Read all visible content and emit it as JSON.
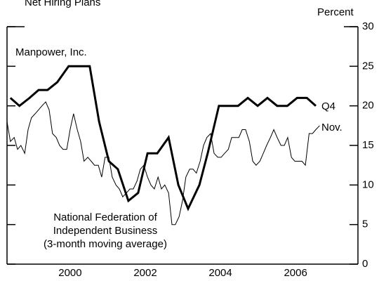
{
  "chart_data": {
    "type": "line",
    "title": "Net Hiring Plans",
    "y_axis_label": "Percent",
    "annotations": [
      "Manpower, Inc.",
      "Q4",
      "Nov.",
      "National Federation of",
      "Independent Business",
      "(3-month moving average)"
    ],
    "xlim": [
      1998.82,
      2008.16
    ],
    "xticks": [
      {
        "value": 2000.5,
        "label": "2000"
      },
      {
        "value": 2002.5,
        "label": "2002"
      },
      {
        "value": 2004.5,
        "label": "2004"
      },
      {
        "value": 2006.5,
        "label": "2006"
      }
    ],
    "ylim": [
      0,
      30
    ],
    "yticks": [
      0,
      5,
      10,
      15,
      20,
      25,
      30
    ],
    "series": [
      {
        "name": "Manpower, Inc.",
        "color": "#000000",
        "width": 3,
        "x": [
          1998.91,
          1999.15,
          1999.42,
          1999.66,
          1999.9,
          2000.16,
          2000.46,
          2000.72,
          2001.02,
          2001.27,
          2001.53,
          2001.77,
          2002.05,
          2002.31,
          2002.56,
          2002.82,
          2003.12,
          2003.38,
          2003.64,
          2003.94,
          2004.16,
          2004.46,
          2004.7,
          2004.97,
          2005.23,
          2005.49,
          2005.75,
          2006.01,
          2006.28,
          2006.54,
          2006.8,
          2007.04
        ],
        "values": [
          21,
          20,
          21,
          22,
          22,
          23,
          25,
          25,
          25,
          18,
          13,
          12,
          8,
          9,
          14,
          14,
          16,
          10,
          7,
          10,
          14,
          20,
          20,
          20,
          21,
          20,
          21,
          20,
          20,
          21,
          21,
          20
        ]
      },
      {
        "name": "National Federation of Independent Business",
        "color": "#000000",
        "width": 1,
        "x": [
          1998.82,
          1998.91,
          1999.01,
          1999.1,
          1999.19,
          1999.29,
          1999.38,
          1999.47,
          1999.57,
          1999.66,
          1999.75,
          1999.85,
          1999.94,
          2000.03,
          2000.13,
          2000.22,
          2000.31,
          2000.41,
          2000.5,
          2000.59,
          2000.69,
          2000.78,
          2000.87,
          2000.97,
          2001.06,
          2001.15,
          2001.25,
          2001.34,
          2001.43,
          2001.53,
          2001.62,
          2001.72,
          2001.81,
          2001.9,
          2002.0,
          2002.09,
          2002.18,
          2002.28,
          2002.37,
          2002.46,
          2002.56,
          2002.65,
          2002.74,
          2002.84,
          2002.93,
          2003.02,
          2003.12,
          2003.21,
          2003.3,
          2003.4,
          2003.49,
          2003.58,
          2003.68,
          2003.77,
          2003.86,
          2003.96,
          2004.05,
          2004.14,
          2004.24,
          2004.33,
          2004.43,
          2004.52,
          2004.61,
          2004.71,
          2004.8,
          2004.89,
          2004.99,
          2005.08,
          2005.17,
          2005.27,
          2005.36,
          2005.45,
          2005.55,
          2005.64,
          2005.73,
          2005.83,
          2005.92,
          2006.01,
          2006.11,
          2006.2,
          2006.29,
          2006.39,
          2006.48,
          2006.57,
          2006.67,
          2006.76,
          2006.86,
          2006.95,
          2007.04,
          2007.14
        ],
        "values": [
          18,
          15.5,
          16,
          14.5,
          15,
          14,
          17,
          18.5,
          19,
          19.5,
          20,
          20.5,
          19.5,
          16.5,
          16,
          15,
          14.5,
          14.5,
          17,
          19,
          17,
          15.5,
          13,
          13.5,
          13,
          12.5,
          12.5,
          11,
          13.5,
          13.5,
          11,
          10,
          9.5,
          8.5,
          9,
          9.5,
          9.5,
          10.5,
          12,
          12.5,
          11,
          10,
          9.5,
          11,
          9.5,
          10,
          9,
          5,
          5,
          6,
          8,
          11,
          12,
          12,
          11.5,
          13,
          15,
          16,
          16.5,
          14,
          13.5,
          13.5,
          14,
          14.5,
          16,
          16,
          16,
          17,
          17,
          15.5,
          13,
          12.5,
          13,
          14,
          15,
          16,
          17,
          16,
          15,
          15,
          16,
          13.5,
          13,
          13,
          13,
          12.5,
          16.5,
          16.5,
          17,
          17.5
        ]
      }
    ]
  }
}
